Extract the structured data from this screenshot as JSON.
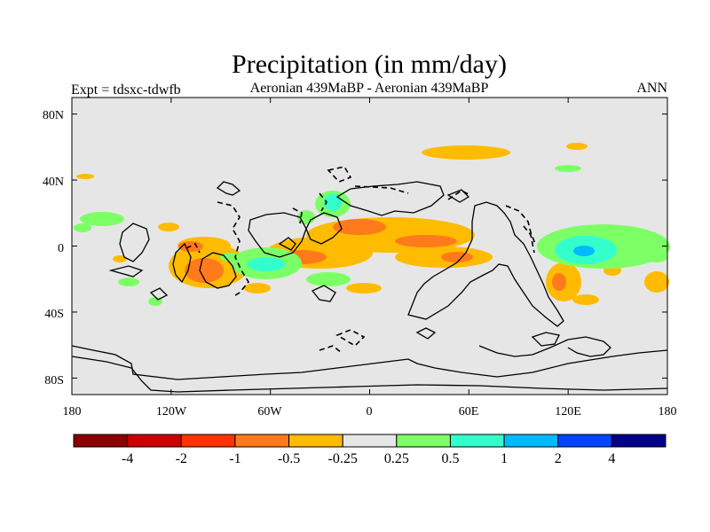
{
  "title": "Precipitation (in mm/day)",
  "left_subtitle": "Expt = tdsxc-tdwfb",
  "center_subtitle": "Aeronian 439MaBP - Aeronian 439MaBP",
  "right_subtitle": "ANN",
  "map": {
    "lon_ticks": [
      "180",
      "120W",
      "60W",
      "0",
      "60E",
      "120E",
      "180"
    ],
    "lat_ticks": [
      "80N",
      "40N",
      "0",
      "40S",
      "80S"
    ],
    "background_color": "#e6e6e6"
  },
  "colorbar": {
    "colors": [
      "#8b0000",
      "#cc0000",
      "#ff3300",
      "#ff7a1a",
      "#ffbb00",
      "#e6e6e6",
      "#7dff66",
      "#33ffcc",
      "#00bbff",
      "#0044ff",
      "#000088"
    ],
    "labels": [
      "-4",
      "-2",
      "-1",
      "-0.5",
      "-0.25",
      "0.25",
      "0.5",
      "1",
      "2",
      "4"
    ]
  },
  "chart_data": {
    "type": "heatmap",
    "variable": "Precipitation",
    "units": "mm/day",
    "experiment": "tdsxc-tdwfb",
    "season": "ANN",
    "levels": [
      -4,
      -2,
      -1,
      -0.5,
      -0.25,
      0.25,
      0.5,
      1,
      2,
      4
    ],
    "lon_range": [
      -180,
      180
    ],
    "lat_range": [
      -90,
      90
    ]
  }
}
